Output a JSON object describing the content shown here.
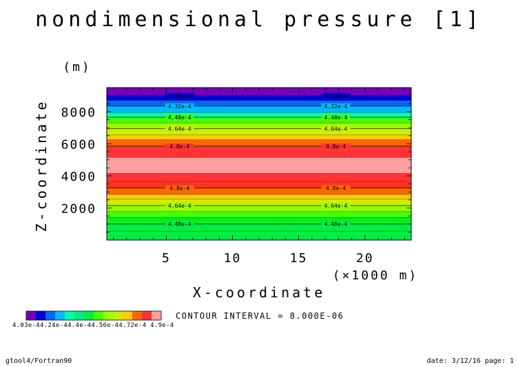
{
  "chart_data": {
    "type": "heatmap",
    "title": "nondimensional pressure [1]",
    "xlabel": "X-coordinate",
    "xunit": "(×1000 m)",
    "ylabel": "Z-coordinate",
    "yunit": "(m)",
    "xlim": [
      0.5,
      23.5
    ],
    "ylim": [
      0,
      9500
    ],
    "xticks": [
      5,
      10,
      15,
      20
    ],
    "xtick_labels": [
      "5",
      "10",
      "15",
      "20"
    ],
    "yticks": [
      2000,
      4000,
      6000,
      8000
    ],
    "ytick_labels": [
      "2000",
      "4000",
      "6000",
      "8000"
    ],
    "bands": [
      {
        "z0": 0,
        "z1": 550,
        "color": "#00ee44"
      },
      {
        "z0": 550,
        "z1": 1000,
        "color": "#00ee44"
      },
      {
        "z0": 1000,
        "z1": 1400,
        "color": "#00ee22"
      },
      {
        "z0": 1400,
        "z1": 1800,
        "color": "#44ff00"
      },
      {
        "z0": 1800,
        "z1": 2150,
        "color": "#99ff00"
      },
      {
        "z0": 2150,
        "z1": 2550,
        "color": "#ccee00"
      },
      {
        "z0": 2550,
        "z1": 2850,
        "color": "#ffcc00"
      },
      {
        "z0": 2850,
        "z1": 3250,
        "color": "#ff6600"
      },
      {
        "z0": 3250,
        "z1": 3650,
        "color": "#ff3322"
      },
      {
        "z0": 3650,
        "z1": 4150,
        "color": "#ff3333"
      },
      {
        "z0": 4150,
        "z1": 5150,
        "color": "#ffa0a0"
      },
      {
        "z0": 5150,
        "z1": 5850,
        "color": "#ff3333"
      },
      {
        "z0": 5850,
        "z1": 6250,
        "color": "#ff6600"
      },
      {
        "z0": 6250,
        "z1": 6550,
        "color": "#ffcc00"
      },
      {
        "z0": 6550,
        "z1": 6950,
        "color": "#ccee00"
      },
      {
        "z0": 6950,
        "z1": 7300,
        "color": "#99ff00"
      },
      {
        "z0": 7300,
        "z1": 7650,
        "color": "#44ff00"
      },
      {
        "z0": 7650,
        "z1": 7950,
        "color": "#00ffaa"
      },
      {
        "z0": 7950,
        "z1": 8350,
        "color": "#00bbff"
      },
      {
        "z0": 8350,
        "z1": 8700,
        "color": "#0066ff"
      },
      {
        "z0": 8700,
        "z1": 9000,
        "color": "#0000dd"
      },
      {
        "z0": 9000,
        "z1": 9500,
        "color": "#7700bb"
      }
    ],
    "contour_lines": [
      {
        "z": 1000,
        "label": "4.48e-4"
      },
      {
        "z": 2150,
        "label": "4.64e-4"
      },
      {
        "z": 3250,
        "label": "4.8e-4"
      },
      {
        "z": 5850,
        "label": "4.8e-4"
      },
      {
        "z": 6950,
        "label": "4.64e-4"
      },
      {
        "z": 7650,
        "label": "4.48e-4"
      },
      {
        "z": 8350,
        "label": "4.32e-4"
      },
      {
        "z": 9000,
        "label": "4.16e-4"
      }
    ],
    "contour_label_x": [
      6.0,
      17.8
    ],
    "extra_lines_z": [
      550,
      1400,
      1800,
      2550,
      2850,
      3650,
      4150,
      5150,
      6250,
      6550,
      7300,
      7950,
      8700
    ],
    "colorbar": {
      "colors": [
        "#7700bb",
        "#0000dd",
        "#0066ff",
        "#00bbff",
        "#00ffaa",
        "#00ee88",
        "#00ee44",
        "#44ff00",
        "#99ff00",
        "#ccee00",
        "#ffcc00",
        "#ff6600",
        "#ff3333",
        "#ffa0a0"
      ],
      "tick_labels_text": "4.03e-44.24e-44.4e-44.56e-44.72e-4 4.9e-4"
    },
    "contour_interval": "CONTOUR INTERVAL = 8.000E-06"
  },
  "footer": {
    "left": "gtool4/Fortran90",
    "right": "date: 3/12/16 page: 1"
  }
}
